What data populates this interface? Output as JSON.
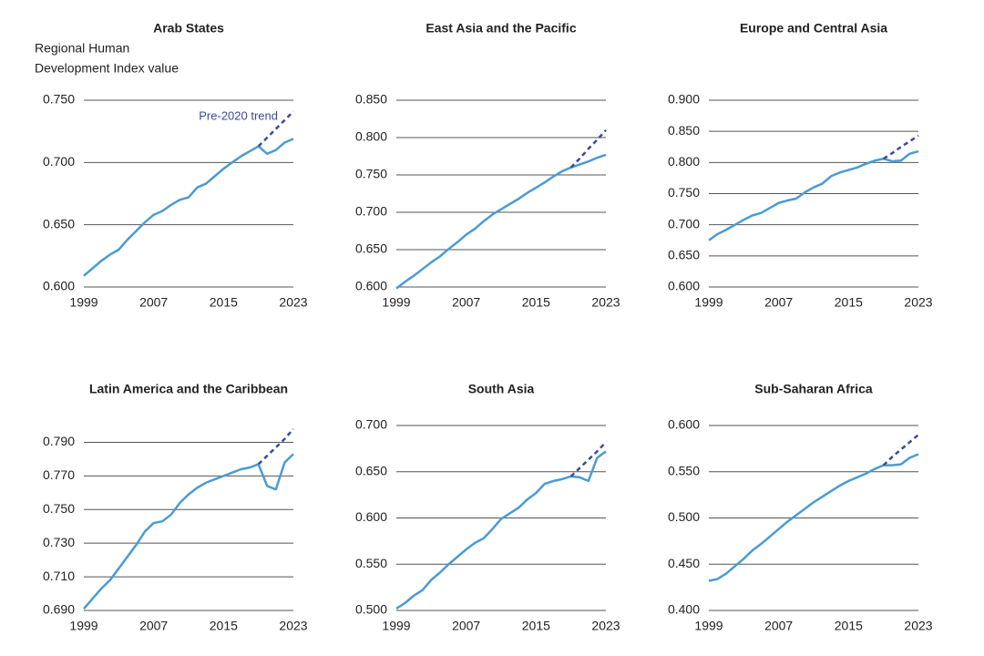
{
  "chart_data": [
    {
      "type": "line",
      "title": "Arab States",
      "ylabel": [
        "Regional Human",
        "Development Index value"
      ],
      "x": [
        1999,
        2000,
        2001,
        2002,
        2003,
        2004,
        2005,
        2006,
        2007,
        2008,
        2009,
        2010,
        2011,
        2012,
        2013,
        2014,
        2015,
        2016,
        2017,
        2018,
        2019,
        2020,
        2021,
        2022,
        2023
      ],
      "xlim": [
        1999,
        2023
      ],
      "xticks": [
        1999,
        2007,
        2015,
        2023
      ],
      "ylim": [
        0.6,
        0.75
      ],
      "yticks": [
        {
          "value": 0.6,
          "label": "0.600"
        },
        {
          "value": 0.65,
          "label": "0.650"
        },
        {
          "value": 0.7,
          "label": "0.700"
        },
        {
          "value": 0.75,
          "label": "0.750"
        }
      ],
      "grid": true,
      "series": [
        {
          "color": "#4a9bd4",
          "values": [
            0.609,
            0.615,
            0.621,
            0.626,
            0.63,
            0.638,
            0.645,
            0.652,
            0.658,
            0.661,
            0.666,
            0.67,
            0.672,
            0.68,
            0.683,
            0.689,
            0.695,
            0.7,
            0.705,
            0.709,
            0.713,
            0.707,
            0.71,
            0.716,
            0.719
          ]
        },
        {
          "name": "Pre-2020 trend",
          "color": "#3b4a9c",
          "dashed": true,
          "values": [
            null,
            null,
            null,
            null,
            null,
            null,
            null,
            null,
            null,
            null,
            null,
            null,
            null,
            null,
            null,
            null,
            null,
            null,
            null,
            null,
            0.713,
            0.72,
            0.727,
            0.734,
            0.741
          ]
        }
      ]
    },
    {
      "type": "line",
      "title": "East Asia and the Pacific",
      "x": [
        1999,
        2000,
        2001,
        2002,
        2003,
        2004,
        2005,
        2006,
        2007,
        2008,
        2009,
        2010,
        2011,
        2012,
        2013,
        2014,
        2015,
        2016,
        2017,
        2018,
        2019,
        2020,
        2021,
        2022,
        2023
      ],
      "xlim": [
        1999,
        2023
      ],
      "xticks": [
        1999,
        2007,
        2015,
        2023
      ],
      "ylim": [
        0.6,
        0.85
      ],
      "yticks": [
        {
          "value": 0.6,
          "label": "0.600"
        },
        {
          "value": 0.65,
          "label": "0.650"
        },
        {
          "value": 0.7,
          "label": "0.700"
        },
        {
          "value": 0.75,
          "label": "0.750"
        },
        {
          "value": 0.8,
          "label": "0.800"
        },
        {
          "value": 0.85,
          "label": "0.850"
        }
      ],
      "grid": true,
      "series": [
        {
          "color": "#4a9bd4",
          "values": [
            0.598,
            0.607,
            0.615,
            0.624,
            0.633,
            0.641,
            0.651,
            0.66,
            0.67,
            0.678,
            0.688,
            0.697,
            0.704,
            0.711,
            0.718,
            0.726,
            0.733,
            0.74,
            0.748,
            0.755,
            0.76,
            0.764,
            0.768,
            0.773,
            0.777
          ]
        },
        {
          "color": "#3b4a9c",
          "dashed": true,
          "values": [
            null,
            null,
            null,
            null,
            null,
            null,
            null,
            null,
            null,
            null,
            null,
            null,
            null,
            null,
            null,
            null,
            null,
            null,
            null,
            null,
            0.76,
            0.772,
            0.785,
            0.797,
            0.81
          ]
        }
      ]
    },
    {
      "type": "line",
      "title": "Europe and Central Asia",
      "x": [
        1999,
        2000,
        2001,
        2002,
        2003,
        2004,
        2005,
        2006,
        2007,
        2008,
        2009,
        2010,
        2011,
        2012,
        2013,
        2014,
        2015,
        2016,
        2017,
        2018,
        2019,
        2020,
        2021,
        2022,
        2023
      ],
      "xlim": [
        1999,
        2023
      ],
      "xticks": [
        1999,
        2007,
        2015,
        2023
      ],
      "ylim": [
        0.6,
        0.9
      ],
      "yticks": [
        {
          "value": 0.6,
          "label": "0.600"
        },
        {
          "value": 0.65,
          "label": "0.650"
        },
        {
          "value": 0.7,
          "label": "0.700"
        },
        {
          "value": 0.75,
          "label": "0.750"
        },
        {
          "value": 0.8,
          "label": "0.800"
        },
        {
          "value": 0.85,
          "label": "0.850"
        },
        {
          "value": 0.9,
          "label": "0.900"
        }
      ],
      "grid": true,
      "series": [
        {
          "color": "#4a9bd4",
          "values": [
            0.675,
            0.685,
            0.692,
            0.7,
            0.708,
            0.715,
            0.719,
            0.727,
            0.735,
            0.739,
            0.742,
            0.752,
            0.76,
            0.766,
            0.778,
            0.784,
            0.788,
            0.792,
            0.798,
            0.803,
            0.806,
            0.802,
            0.803,
            0.814,
            0.818
          ]
        },
        {
          "color": "#3b4a9c",
          "dashed": true,
          "values": [
            null,
            null,
            null,
            null,
            null,
            null,
            null,
            null,
            null,
            null,
            null,
            null,
            null,
            null,
            null,
            null,
            null,
            null,
            null,
            null,
            0.806,
            0.815,
            0.825,
            0.834,
            0.843
          ]
        }
      ]
    },
    {
      "type": "line",
      "title": "Latin America and the Caribbean",
      "x": [
        1999,
        2000,
        2001,
        2002,
        2003,
        2004,
        2005,
        2006,
        2007,
        2008,
        2009,
        2010,
        2011,
        2012,
        2013,
        2014,
        2015,
        2016,
        2017,
        2018,
        2019,
        2020,
        2021,
        2022,
        2023
      ],
      "xlim": [
        1999,
        2023
      ],
      "xticks": [
        1999,
        2007,
        2015,
        2023
      ],
      "ylim": [
        0.69,
        0.8
      ],
      "yticks": [
        {
          "value": 0.69,
          "label": "0.690"
        },
        {
          "value": 0.71,
          "label": "0.710"
        },
        {
          "value": 0.73,
          "label": "0.730"
        },
        {
          "value": 0.75,
          "label": "0.750"
        },
        {
          "value": 0.77,
          "label": "0.770"
        },
        {
          "value": 0.79,
          "label": "0.790"
        }
      ],
      "grid": true,
      "series": [
        {
          "color": "#4a9bd4",
          "values": [
            0.691,
            0.697,
            0.703,
            0.708,
            0.715,
            0.722,
            0.729,
            0.737,
            0.742,
            0.743,
            0.747,
            0.754,
            0.759,
            0.763,
            0.766,
            0.768,
            0.77,
            0.772,
            0.774,
            0.775,
            0.777,
            0.764,
            0.762,
            0.778,
            0.783
          ]
        },
        {
          "color": "#3b4a9c",
          "dashed": true,
          "values": [
            null,
            null,
            null,
            null,
            null,
            null,
            null,
            null,
            null,
            null,
            null,
            null,
            null,
            null,
            null,
            null,
            null,
            null,
            null,
            null,
            0.777,
            0.782,
            0.787,
            0.792,
            0.798
          ]
        }
      ]
    },
    {
      "type": "line",
      "title": "South Asia",
      "x": [
        1999,
        2000,
        2001,
        2002,
        2003,
        2004,
        2005,
        2006,
        2007,
        2008,
        2009,
        2010,
        2011,
        2012,
        2013,
        2014,
        2015,
        2016,
        2017,
        2018,
        2019,
        2020,
        2021,
        2022,
        2023
      ],
      "xlim": [
        1999,
        2023
      ],
      "xticks": [
        1999,
        2007,
        2015,
        2023
      ],
      "ylim": [
        0.5,
        0.7
      ],
      "yticks": [
        {
          "value": 0.5,
          "label": "0.500"
        },
        {
          "value": 0.55,
          "label": "0.550"
        },
        {
          "value": 0.6,
          "label": "0.600"
        },
        {
          "value": 0.65,
          "label": "0.650"
        },
        {
          "value": 0.7,
          "label": "0.700"
        }
      ],
      "grid": true,
      "series": [
        {
          "color": "#4a9bd4",
          "values": [
            0.502,
            0.508,
            0.516,
            0.522,
            0.533,
            0.541,
            0.55,
            0.558,
            0.566,
            0.573,
            0.578,
            0.588,
            0.599,
            0.605,
            0.611,
            0.62,
            0.627,
            0.637,
            0.64,
            0.642,
            0.645,
            0.644,
            0.64,
            0.665,
            0.672
          ]
        },
        {
          "color": "#3b4a9c",
          "dashed": true,
          "values": [
            null,
            null,
            null,
            null,
            null,
            null,
            null,
            null,
            null,
            null,
            null,
            null,
            null,
            null,
            null,
            null,
            null,
            null,
            null,
            null,
            0.645,
            0.654,
            0.663,
            0.672,
            0.682
          ]
        }
      ]
    },
    {
      "type": "line",
      "title": "Sub-Saharan Africa",
      "x": [
        1999,
        2000,
        2001,
        2002,
        2003,
        2004,
        2005,
        2006,
        2007,
        2008,
        2009,
        2010,
        2011,
        2012,
        2013,
        2014,
        2015,
        2016,
        2017,
        2018,
        2019,
        2020,
        2021,
        2022,
        2023
      ],
      "xlim": [
        1999,
        2023
      ],
      "xticks": [
        1999,
        2007,
        2015,
        2023
      ],
      "ylim": [
        0.4,
        0.6
      ],
      "yticks": [
        {
          "value": 0.4,
          "label": "0.400"
        },
        {
          "value": 0.45,
          "label": "0.450"
        },
        {
          "value": 0.5,
          "label": "0.500"
        },
        {
          "value": 0.55,
          "label": "0.550"
        },
        {
          "value": 0.6,
          "label": "0.600"
        }
      ],
      "grid": true,
      "series": [
        {
          "color": "#4a9bd4",
          "values": [
            0.432,
            0.434,
            0.44,
            0.448,
            0.456,
            0.465,
            0.472,
            0.48,
            0.488,
            0.496,
            0.503,
            0.51,
            0.517,
            0.523,
            0.529,
            0.535,
            0.54,
            0.544,
            0.548,
            0.553,
            0.557,
            0.557,
            0.558,
            0.565,
            0.569
          ]
        },
        {
          "color": "#3b4a9c",
          "dashed": true,
          "values": [
            null,
            null,
            null,
            null,
            null,
            null,
            null,
            null,
            null,
            null,
            null,
            null,
            null,
            null,
            null,
            null,
            null,
            null,
            null,
            null,
            0.557,
            0.566,
            0.574,
            0.582,
            0.59
          ]
        }
      ]
    }
  ]
}
